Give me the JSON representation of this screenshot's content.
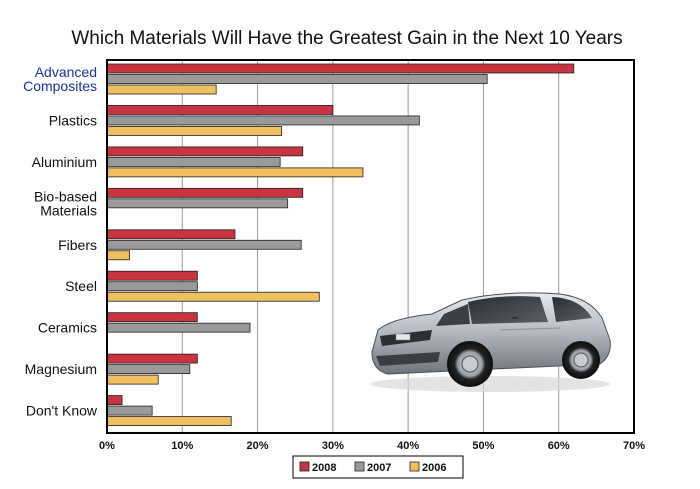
{
  "chart_data": {
    "type": "bar",
    "orientation": "horizontal",
    "title": "Which Materials Will Have the Greatest Gain in the Next 10 Years",
    "categories": [
      "Advanced Composites",
      "Plastics",
      "Aluminium",
      "Bio-based Materials",
      "Fibers",
      "Steel",
      "Ceramics",
      "Magnesium",
      "Don't Know"
    ],
    "category_lines": [
      [
        "Advanced",
        "Composites"
      ],
      [
        "Plastics"
      ],
      [
        "Aluminium"
      ],
      [
        "Bio-based",
        "Materials"
      ],
      [
        "Fibers"
      ],
      [
        "Steel"
      ],
      [
        "Ceramics"
      ],
      [
        "Magnesium"
      ],
      [
        "Don't Know"
      ]
    ],
    "series": [
      {
        "name": "2008",
        "color": "#c8343f",
        "values": [
          62,
          30,
          26,
          26,
          17,
          12,
          12,
          12,
          2
        ]
      },
      {
        "name": "2007",
        "color": "#9a9a9a",
        "values": [
          50.5,
          41.5,
          23,
          24,
          25.8,
          12,
          19,
          11,
          6
        ]
      },
      {
        "name": "2006",
        "color": "#f0c060",
        "values": [
          14.5,
          23.2,
          34,
          null,
          3,
          28.2,
          null,
          6.8,
          16.5
        ]
      }
    ],
    "xlim": [
      0,
      70
    ],
    "xticks": [
      0,
      10,
      20,
      30,
      40,
      50,
      60,
      70
    ],
    "xtick_labels": [
      "0%",
      "10%",
      "20%",
      "30%",
      "40%",
      "50%",
      "60%",
      "70%"
    ],
    "xlabel": "",
    "ylabel": "",
    "grid": true,
    "legend_position": "bottom",
    "highlighted_category_color": "#1f2fa0"
  },
  "image": {
    "subject": "car-illustration"
  }
}
